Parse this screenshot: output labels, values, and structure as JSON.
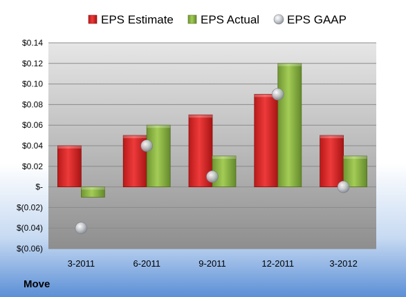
{
  "company": "Move",
  "chart_data": {
    "type": "bar",
    "categories": [
      "3-2011",
      "6-2011",
      "9-2011",
      "12-2011",
      "3-2012"
    ],
    "series": [
      {
        "name": "EPS Estimate",
        "kind": "bar",
        "color": "#d42a2a",
        "values": [
          0.04,
          0.05,
          0.07,
          0.09,
          0.05
        ]
      },
      {
        "name": "EPS Actual",
        "kind": "bar",
        "color": "#8fb844",
        "values": [
          -0.01,
          0.06,
          0.03,
          0.12,
          0.03
        ]
      },
      {
        "name": "EPS GAAP",
        "kind": "marker",
        "color": "#b8bcc4",
        "values": [
          -0.04,
          0.04,
          0.01,
          0.09,
          0.0
        ]
      }
    ],
    "ylim": [
      -0.06,
      0.14
    ],
    "yticks": [
      -0.06,
      -0.04,
      -0.02,
      0,
      0.02,
      0.04,
      0.06,
      0.08,
      0.1,
      0.12,
      0.14
    ],
    "ytick_labels": [
      "$(0.06)",
      "$(0.04)",
      "$(0.02)",
      "$-",
      "$0.02",
      "$0.04",
      "$0.06",
      "$0.08",
      "$0.10",
      "$0.12",
      "$0.14"
    ],
    "grid": true,
    "legend_position": "top"
  }
}
